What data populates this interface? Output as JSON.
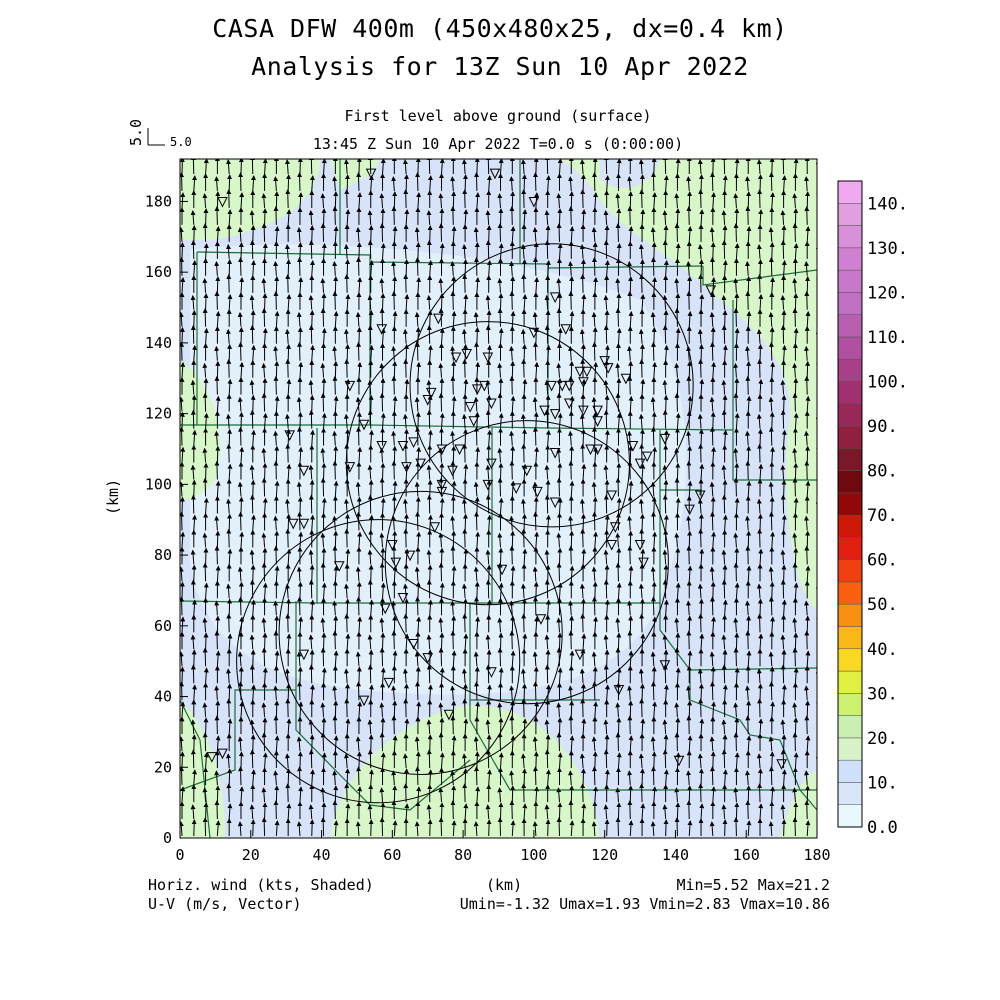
{
  "header": {
    "title_line1": "CASA DFW 400m (450x480x25, dx=0.4 km)",
    "title_line2": "Analysis for 13Z Sun 10 Apr 2022",
    "level": "First level above ground (surface)",
    "time": "13:45 Z Sun 10 Apr 2022    T=0.0 s (0:00:00)",
    "ref_vector_value": "5.0",
    "ref_vector_label": "5.0"
  },
  "axes": {
    "x_label": "(km)",
    "y_label": "(km)",
    "x_ticks": [
      "0",
      "20",
      "40",
      "60",
      "80",
      "100",
      "120",
      "140",
      "160",
      "180"
    ],
    "y_ticks": [
      "0",
      "20",
      "40",
      "60",
      "80",
      "100",
      "120",
      "140",
      "160",
      "180"
    ],
    "x_range": [
      0,
      180
    ],
    "y_range": [
      0,
      192
    ]
  },
  "footer": {
    "left_line1": "Horiz. wind (kts, Shaded)",
    "left_line2": "U-V (m/s, Vector)",
    "right_line1": "Min=5.52 Max=21.2",
    "right_line2": "Umin=-1.32 Umax=1.93 Vmin=2.83 Vmax=10.86"
  },
  "colorbar": {
    "labels": [
      "0.0",
      "10.",
      "20.",
      "30.",
      "40.",
      "50.",
      "60.",
      "70.",
      "80.",
      "90.",
      "100.",
      "110.",
      "120.",
      "130.",
      "140."
    ],
    "colors": [
      "#e8f8fc",
      "#d8e6f8",
      "#cfe0fb",
      "#d8f2c8",
      "#c8f0b0",
      "#ccf070",
      "#e0f040",
      "#f8d820",
      "#f8b818",
      "#f89010",
      "#f86010",
      "#f04010",
      "#e02010",
      "#d01808",
      "#900808",
      "#700810",
      "#781828",
      "#902040",
      "#982858",
      "#a03070",
      "#a84088",
      "#b050a0",
      "#b860b0",
      "#c070c0",
      "#c878c8",
      "#d080d0",
      "#d890d8",
      "#e0a0e0",
      "#f0a8f0"
    ]
  },
  "map": {
    "shading_colors": {
      "low": "#d8e6f8",
      "mid": "#cfdcf8",
      "green": "#d8f7c8",
      "light": "#e6f4fb"
    },
    "line_color": "#1a6e3a",
    "radars": [
      {
        "x": 105,
        "y": 128
      },
      {
        "x": 87,
        "y": 106
      },
      {
        "x": 98,
        "y": 78
      },
      {
        "x": 68,
        "y": 58
      },
      {
        "x": 56,
        "y": 50
      }
    ],
    "stations": [
      [
        12,
        180
      ],
      [
        54,
        188
      ],
      [
        89,
        188
      ],
      [
        100,
        180
      ],
      [
        150,
        155
      ],
      [
        106,
        153
      ],
      [
        73,
        147
      ],
      [
        109,
        144
      ],
      [
        57,
        144
      ],
      [
        100,
        143
      ],
      [
        81,
        137
      ],
      [
        78,
        136
      ],
      [
        87,
        136
      ],
      [
        120,
        135
      ],
      [
        121,
        133
      ],
      [
        115,
        132
      ],
      [
        113,
        132
      ],
      [
        48,
        128
      ],
      [
        110,
        128
      ],
      [
        108,
        128
      ],
      [
        105,
        128
      ],
      [
        114,
        129
      ],
      [
        126,
        130
      ],
      [
        86,
        128
      ],
      [
        84,
        127
      ],
      [
        70,
        124
      ],
      [
        71,
        126
      ],
      [
        88,
        123
      ],
      [
        82,
        122
      ],
      [
        110,
        123
      ],
      [
        114,
        121
      ],
      [
        118,
        121
      ],
      [
        106,
        120
      ],
      [
        103,
        121
      ],
      [
        118,
        118
      ],
      [
        83,
        118
      ],
      [
        52,
        117
      ],
      [
        31,
        114
      ],
      [
        57,
        111
      ],
      [
        66,
        112
      ],
      [
        63,
        111
      ],
      [
        116,
        110
      ],
      [
        137,
        113
      ],
      [
        118,
        110
      ],
      [
        106,
        109
      ],
      [
        128,
        111
      ],
      [
        79,
        110
      ],
      [
        74,
        110
      ],
      [
        132,
        108
      ],
      [
        130,
        106
      ],
      [
        68,
        106
      ],
      [
        88,
        106
      ],
      [
        64,
        105
      ],
      [
        48,
        105
      ],
      [
        77,
        104
      ],
      [
        35,
        104
      ],
      [
        98,
        104
      ],
      [
        87,
        100
      ],
      [
        74,
        100
      ],
      [
        74,
        98
      ],
      [
        101,
        98
      ],
      [
        95,
        99
      ],
      [
        122,
        97
      ],
      [
        106,
        95
      ],
      [
        147,
        97
      ],
      [
        144,
        93
      ],
      [
        32,
        89
      ],
      [
        72,
        88
      ],
      [
        35,
        89
      ],
      [
        123,
        88
      ],
      [
        60,
        83
      ],
      [
        122,
        83
      ],
      [
        65,
        80
      ],
      [
        61,
        78
      ],
      [
        130,
        83
      ],
      [
        45,
        77
      ],
      [
        91,
        76
      ],
      [
        63,
        68
      ],
      [
        131,
        78
      ],
      [
        58,
        65
      ],
      [
        102,
        62
      ],
      [
        66,
        55
      ],
      [
        35,
        52
      ],
      [
        113,
        52
      ],
      [
        70,
        51
      ],
      [
        88,
        47
      ],
      [
        137,
        49
      ],
      [
        59,
        44
      ],
      [
        124,
        42
      ],
      [
        52,
        39
      ],
      [
        76,
        35
      ],
      [
        12,
        24
      ],
      [
        9,
        23
      ],
      [
        141,
        22
      ],
      [
        170,
        21
      ]
    ]
  }
}
